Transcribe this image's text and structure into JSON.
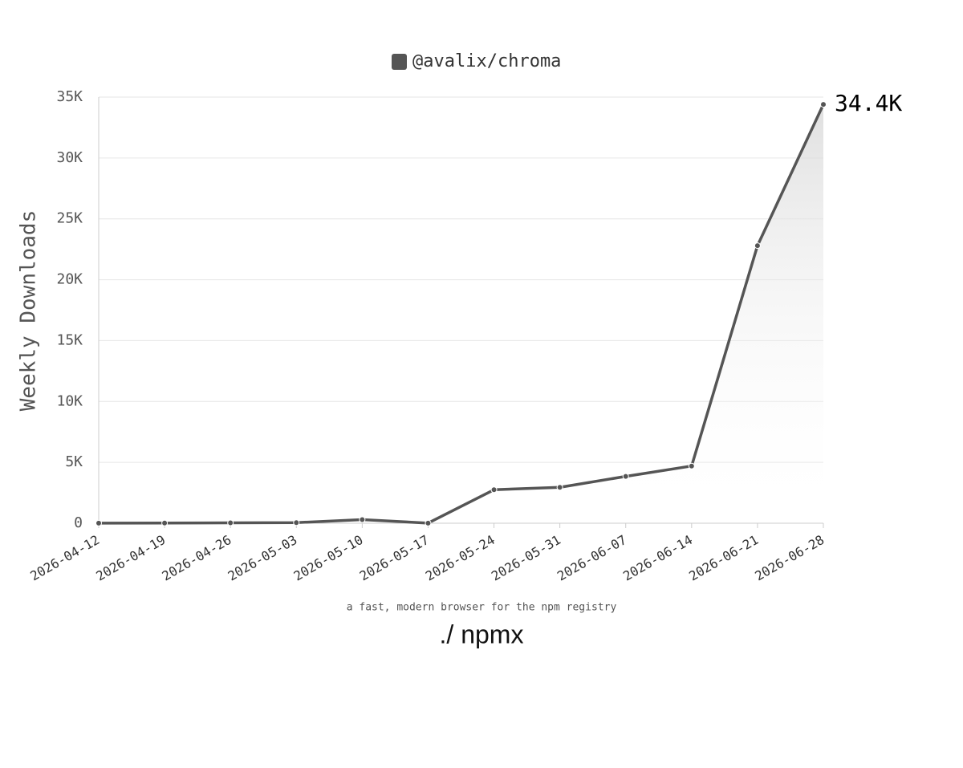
{
  "chart_data": {
    "type": "line",
    "categories": [
      "2026-04-12",
      "2026-04-19",
      "2026-04-26",
      "2026-05-03",
      "2026-05-10",
      "2026-05-17",
      "2026-05-24",
      "2026-05-31",
      "2026-06-07",
      "2026-06-14",
      "2026-06-21",
      "2026-06-28"
    ],
    "series": [
      {
        "name": "@avalix/chroma",
        "color": "#555555",
        "values": [
          10,
          20,
          30,
          50,
          300,
          10,
          2750,
          2950,
          3850,
          4700,
          22800,
          34400
        ],
        "value_labels": [
          null,
          null,
          null,
          null,
          null,
          null,
          null,
          null,
          null,
          null,
          null,
          "34.4K"
        ]
      }
    ],
    "ylabel": "Weekly Downloads",
    "ylim": [
      0,
      35000
    ],
    "yticks": [
      0,
      {
        "value": 5000,
        "label": "5K"
      },
      {
        "value": 10000,
        "label": "10K"
      },
      {
        "value": 15000,
        "label": "15K"
      },
      {
        "value": 20000,
        "label": "20K"
      },
      {
        "value": 25000,
        "label": "25K"
      },
      {
        "value": 30000,
        "label": "30K"
      },
      {
        "value": 35000,
        "label": "35K"
      }
    ],
    "grid": true,
    "caption": "a fast, modern browser for the npm registry",
    "brand": "./ npmx"
  }
}
